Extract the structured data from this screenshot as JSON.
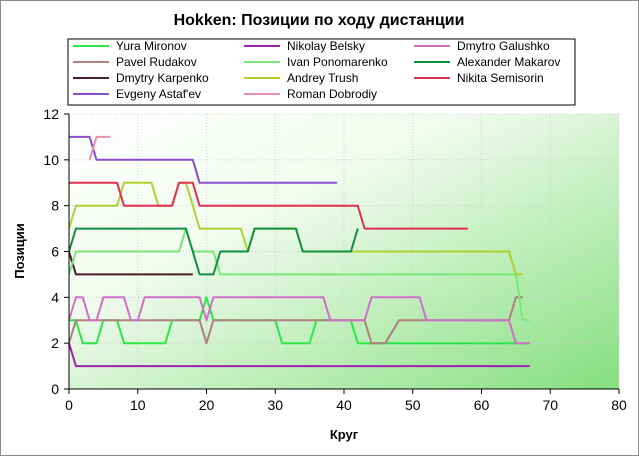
{
  "chart_data": {
    "type": "line",
    "title": "Hokken: Позиции по ходу дистанции",
    "xlabel": "Круг",
    "ylabel": "Позиции",
    "xlim": [
      0,
      80
    ],
    "ylim": [
      0,
      12
    ],
    "x_ticks": [
      "0",
      "10",
      "20",
      "30",
      "40",
      "50",
      "60",
      "70",
      "80"
    ],
    "y_ticks": [
      "0",
      "2",
      "4",
      "6",
      "8",
      "10",
      "12"
    ],
    "grid": true,
    "legend_position": "top",
    "series": [
      {
        "name": "Yura Mironov",
        "color": "#2ee64a",
        "points": [
          [
            0,
            3
          ],
          [
            1,
            3
          ],
          [
            2,
            2
          ],
          [
            3,
            2
          ],
          [
            4,
            2
          ],
          [
            5,
            3
          ],
          [
            6,
            3
          ],
          [
            7,
            3
          ],
          [
            8,
            2
          ],
          [
            9,
            2
          ],
          [
            10,
            2
          ],
          [
            11,
            2
          ],
          [
            12,
            2
          ],
          [
            13,
            2
          ],
          [
            14,
            2
          ],
          [
            15,
            3
          ],
          [
            16,
            3
          ],
          [
            17,
            3
          ],
          [
            18,
            3
          ],
          [
            19,
            3
          ],
          [
            20,
            4
          ],
          [
            21,
            3
          ],
          [
            22,
            3
          ],
          [
            30,
            3
          ],
          [
            31,
            2
          ],
          [
            35,
            2
          ],
          [
            36,
            3
          ],
          [
            41,
            3
          ],
          [
            42,
            2
          ],
          [
            67,
            2
          ]
        ]
      },
      {
        "name": "Pavel Rudakov",
        "color": "#b07f7f",
        "points": [
          [
            0,
            2
          ],
          [
            1,
            3
          ],
          [
            2,
            3
          ],
          [
            3,
            3
          ],
          [
            4,
            3
          ],
          [
            5,
            3
          ],
          [
            6,
            3
          ],
          [
            7,
            3
          ],
          [
            8,
            3
          ],
          [
            12,
            3
          ],
          [
            13,
            3
          ],
          [
            14,
            3
          ],
          [
            15,
            3
          ],
          [
            16,
            3
          ],
          [
            17,
            3
          ],
          [
            18,
            3
          ],
          [
            19,
            3
          ],
          [
            20,
            2
          ],
          [
            21,
            3
          ],
          [
            28,
            3
          ],
          [
            30,
            3
          ],
          [
            31,
            3
          ],
          [
            34,
            3
          ],
          [
            35,
            3
          ],
          [
            36,
            3
          ],
          [
            41,
            3
          ],
          [
            43,
            3
          ],
          [
            44,
            2
          ],
          [
            46,
            2
          ],
          [
            48,
            3
          ],
          [
            51,
            3
          ],
          [
            52,
            3
          ],
          [
            64,
            3
          ],
          [
            65,
            4
          ],
          [
            66,
            4
          ]
        ]
      },
      {
        "name": "Dmytry Karpenko",
        "color": "#4a1f2a",
        "points": [
          [
            0,
            6
          ],
          [
            1,
            5
          ],
          [
            18,
            5
          ]
        ]
      },
      {
        "name": "Evgeny Astaf'ev",
        "color": "#8a4fd0",
        "points": [
          [
            0,
            11
          ],
          [
            3,
            11
          ],
          [
            4,
            10
          ],
          [
            18,
            10
          ],
          [
            19,
            9
          ],
          [
            39,
            9
          ]
        ]
      },
      {
        "name": "Nikolay Belsky",
        "color": "#a020b0",
        "points": [
          [
            0,
            2
          ],
          [
            1,
            1
          ],
          [
            67,
            1
          ]
        ]
      },
      {
        "name": "Ivan Ponomarenko",
        "color": "#78e878",
        "points": [
          [
            0,
            5
          ],
          [
            1,
            6
          ],
          [
            16,
            6
          ],
          [
            17,
            7
          ],
          [
            18,
            6
          ],
          [
            21,
            6
          ],
          [
            22,
            5
          ],
          [
            65,
            5
          ],
          [
            66,
            3
          ],
          [
            67,
            3
          ]
        ]
      },
      {
        "name": "Andrey Trush",
        "color": "#b0d030",
        "points": [
          [
            0,
            7
          ],
          [
            1,
            8
          ],
          [
            7,
            8
          ],
          [
            8,
            9
          ],
          [
            12,
            9
          ],
          [
            13,
            8
          ],
          [
            15,
            8
          ],
          [
            16,
            9
          ],
          [
            17,
            9
          ],
          [
            18,
            8
          ],
          [
            19,
            7
          ],
          [
            25,
            7
          ],
          [
            26,
            6
          ],
          [
            27,
            7
          ],
          [
            33,
            7
          ],
          [
            34,
            6
          ],
          [
            64,
            6
          ],
          [
            65,
            5
          ],
          [
            66,
            5
          ]
        ]
      },
      {
        "name": "Roman Dobrodiy",
        "color": "#e890b0",
        "points": [
          [
            3,
            10
          ],
          [
            4,
            11
          ],
          [
            6,
            11
          ]
        ]
      },
      {
        "name": "Dmytro Galushko",
        "color": "#d070c8",
        "points": [
          [
            0,
            3
          ],
          [
            1,
            4
          ],
          [
            2,
            4
          ],
          [
            3,
            3
          ],
          [
            4,
            3
          ],
          [
            5,
            4
          ],
          [
            6,
            4
          ],
          [
            7,
            4
          ],
          [
            8,
            4
          ],
          [
            9,
            3
          ],
          [
            10,
            3
          ],
          [
            11,
            4
          ],
          [
            14,
            4
          ],
          [
            15,
            4
          ],
          [
            16,
            4
          ],
          [
            17,
            4
          ],
          [
            18,
            4
          ],
          [
            19,
            4
          ],
          [
            20,
            3
          ],
          [
            21,
            4
          ],
          [
            32,
            4
          ],
          [
            33,
            4
          ],
          [
            34,
            4
          ],
          [
            35,
            4
          ],
          [
            37,
            4
          ],
          [
            38,
            3
          ],
          [
            40,
            3
          ],
          [
            42,
            3
          ],
          [
            43,
            3
          ],
          [
            44,
            4
          ],
          [
            46,
            4
          ],
          [
            50,
            4
          ],
          [
            51,
            4
          ],
          [
            52,
            3
          ],
          [
            63,
            3
          ],
          [
            64,
            3
          ],
          [
            65,
            2
          ],
          [
            67,
            2
          ]
        ]
      },
      {
        "name": "Alexander Makarov",
        "color": "#109040",
        "points": [
          [
            0,
            6
          ],
          [
            1,
            7
          ],
          [
            17,
            7
          ],
          [
            18,
            6
          ],
          [
            19,
            5
          ],
          [
            21,
            5
          ],
          [
            22,
            6
          ],
          [
            26,
            6
          ],
          [
            27,
            7
          ],
          [
            33,
            7
          ],
          [
            34,
            6
          ],
          [
            40,
            6
          ],
          [
            41,
            6
          ],
          [
            42,
            7
          ]
        ]
      },
      {
        "name": "Nikita Semisorin",
        "color": "#e03050",
        "points": [
          [
            0,
            9
          ],
          [
            7,
            9
          ],
          [
            8,
            8
          ],
          [
            15,
            8
          ],
          [
            16,
            9
          ],
          [
            18,
            9
          ],
          [
            19,
            8
          ],
          [
            42,
            8
          ],
          [
            43,
            7
          ],
          [
            58,
            7
          ]
        ]
      }
    ]
  }
}
